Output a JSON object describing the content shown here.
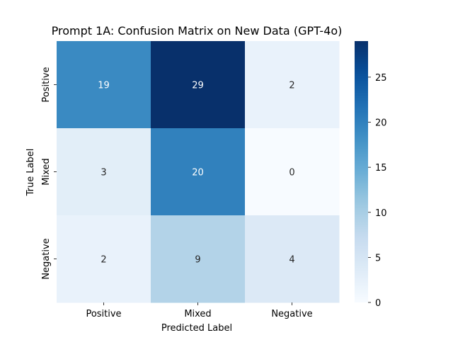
{
  "chart_data": {
    "type": "heatmap",
    "title": "Prompt 1A: Confusion Matrix on New Data (GPT-4o)",
    "xlabel": "Predicted Label",
    "ylabel": "True Label",
    "x_categories": [
      "Positive",
      "Mixed",
      "Negative"
    ],
    "y_categories": [
      "Positive",
      "Mixed",
      "Negative"
    ],
    "values": [
      [
        19,
        29,
        2
      ],
      [
        3,
        20,
        0
      ],
      [
        2,
        9,
        4
      ]
    ],
    "colormap": "Blues",
    "vmin": 0,
    "vmax": 29,
    "colorbar_ticks": [
      0,
      5,
      10,
      15,
      20,
      25
    ]
  }
}
